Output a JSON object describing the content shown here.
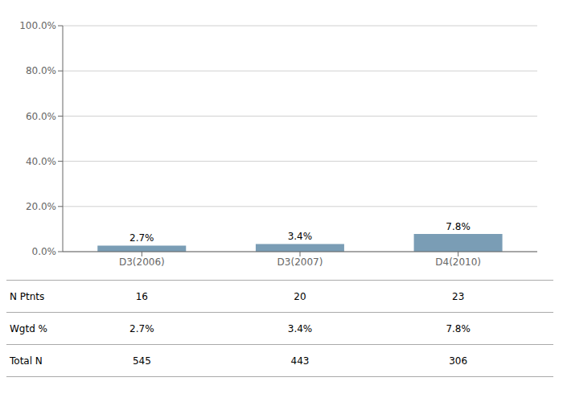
{
  "chart_data": {
    "type": "bar",
    "categories": [
      "D3(2006)",
      "D3(2007)",
      "D4(2010)"
    ],
    "values": [
      2.7,
      3.4,
      7.8
    ],
    "value_labels": [
      "2.7%",
      "3.4%",
      "7.8%"
    ],
    "data_labels": true,
    "color": "#7a9db5",
    "ylim": [
      0,
      100
    ],
    "yticks": [
      {
        "value": 0,
        "label": "0.0%"
      },
      {
        "value": 20.0,
        "label": "20.0%"
      },
      {
        "value": 40.0,
        "label": "40.0%"
      },
      {
        "value": 60.0,
        "label": "60.0%"
      },
      {
        "value": 80.0,
        "label": "80.0%"
      },
      {
        "value": 100.0,
        "label": "100.0%"
      }
    ],
    "grid": true,
    "table": {
      "row_labels": [
        "N Ptnts",
        "Wgtd %",
        "Total N"
      ],
      "rows": [
        [
          "16",
          "20",
          "23"
        ],
        [
          "2.7%",
          "3.4%",
          "7.8%"
        ],
        [
          "545",
          "443",
          "306"
        ]
      ]
    }
  }
}
